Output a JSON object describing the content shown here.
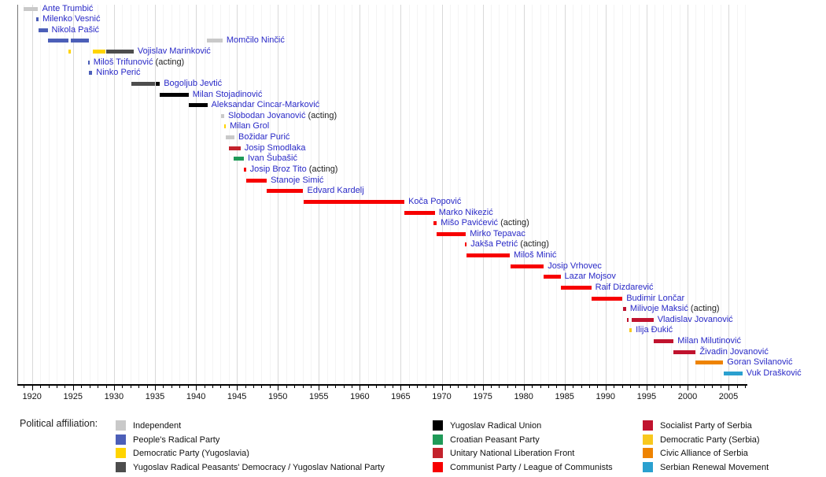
{
  "chart_data": {
    "type": "bar",
    "subtype": "gantt-timeline",
    "description": "Timeline of ministers of foreign affairs of Yugoslavia with terms of office colored by political affiliation",
    "axis": {
      "xmin": 1918.2,
      "xmax": 2007.3,
      "tick_minor_step": 1,
      "tick_label_start": 1920,
      "tick_label_end": 2005,
      "tick_label_step": 5,
      "tick_labels": [
        "1920",
        "1925",
        "1930",
        "1935",
        "1940",
        "1945",
        "1950",
        "1955",
        "1960",
        "1965",
        "1970",
        "1975",
        "1980",
        "1985",
        "1990",
        "1995",
        "2000",
        "2005"
      ],
      "grid": "vertical, yearly minor and 5-year major"
    },
    "acting_suffix": " (acting)",
    "colors": {
      "person_link": "#2929c7",
      "acting_text": "#222222",
      "gridline_minor": "#f4f4f4",
      "gridline_major": "#d9d9d9",
      "axis": "#000000"
    },
    "parties": {
      "independent": {
        "label": "Independent",
        "color": "#c9c9c9"
      },
      "radical": {
        "label": "People's Radical Party",
        "color": "#4c5fb8"
      },
      "democratic_yu": {
        "label": "Democratic Party (Yugoslavia)",
        "color": "#ffd400"
      },
      "ynp": {
        "label": "Yugoslav Radical Peasants' Democracy / Yugoslav National Party",
        "color": "#4d4d4d"
      },
      "jru": {
        "label": "Yugoslav Radical Union",
        "color": "#000000"
      },
      "cpp": {
        "label": "Croatian Peasant Party",
        "color": "#1f9a58"
      },
      "unlf": {
        "label": "Unitary National Liberation Front",
        "color": "#c3222c"
      },
      "communist": {
        "label": "Communist Party / League of Communists",
        "color": "#f70000"
      },
      "sps": {
        "label": "Socialist Party of Serbia",
        "color": "#c0132e"
      },
      "democratic_rs": {
        "label": "Democratic Party (Serbia)",
        "color": "#f8c81e"
      },
      "gsa": {
        "label": "Civic Alliance of Serbia",
        "color": "#ee8300"
      },
      "spo": {
        "label": "Serbian Renewal Movement",
        "color": "#2aa0cf"
      }
    },
    "legend": {
      "title": "Political affiliation:",
      "position": "bottom",
      "columns": [
        [
          "independent",
          "radical",
          "democratic_yu",
          "ynp"
        ],
        [
          "jru",
          "cpp",
          "unlf",
          "communist"
        ],
        [
          "sps",
          "democratic_rs",
          "gsa",
          "spo"
        ]
      ]
    },
    "people": [
      {
        "name": "Ante Trumbić",
        "acting": false,
        "segments": [
          [
            1918.95,
            1920.75,
            "independent"
          ]
        ]
      },
      {
        "name": "Milenko Vesnić",
        "acting": false,
        "segments": [
          [
            1920.5,
            1920.8,
            "radical"
          ]
        ]
      },
      {
        "name": "Nikola Pašić",
        "acting": false,
        "segments": [
          [
            1920.8,
            1921.9,
            "radical"
          ]
        ]
      },
      {
        "name": "Momčilo Ninčić",
        "acting": false,
        "segments": [
          [
            1921.9,
            1924.45,
            "radical"
          ],
          [
            1924.75,
            1926.95,
            "radical"
          ],
          [
            1941.3,
            1943.25,
            "independent"
          ]
        ]
      },
      {
        "name": "Vojislav Marinković",
        "acting": false,
        "segments": [
          [
            1924.45,
            1924.75,
            "democratic_yu"
          ],
          [
            1927.4,
            1929.0,
            "democratic_yu"
          ],
          [
            1929.0,
            1932.4,
            "ynp"
          ]
        ]
      },
      {
        "name": "Miloš Trifunović",
        "acting": true,
        "segments": [
          [
            1926.8,
            1927.0,
            "radical"
          ]
        ]
      },
      {
        "name": "Ninko Perić",
        "acting": false,
        "segments": [
          [
            1926.95,
            1927.35,
            "radical"
          ]
        ]
      },
      {
        "name": "Bogoljub Jevtić",
        "acting": false,
        "segments": [
          [
            1932.1,
            1935.05,
            "ynp"
          ],
          [
            1935.05,
            1935.6,
            "jru"
          ]
        ]
      },
      {
        "name": "Milan Stojadinović",
        "acting": false,
        "segments": [
          [
            1935.6,
            1939.1,
            "jru"
          ]
        ]
      },
      {
        "name": "Aleksandar Cincar-Marković",
        "acting": false,
        "segments": [
          [
            1939.1,
            1941.4,
            "jru"
          ]
        ]
      },
      {
        "name": "Slobodan Jovanović",
        "acting": true,
        "segments": [
          [
            1943.1,
            1943.45,
            "independent"
          ]
        ]
      },
      {
        "name": "Milan Grol",
        "acting": false,
        "segments": [
          [
            1943.4,
            1943.65,
            "democratic_yu"
          ]
        ]
      },
      {
        "name": "Božidar Purić",
        "acting": false,
        "segments": [
          [
            1943.65,
            1944.7,
            "independent"
          ]
        ]
      },
      {
        "name": "Josip Smodlaka",
        "acting": false,
        "segments": [
          [
            1944.0,
            1945.45,
            "unlf"
          ]
        ]
      },
      {
        "name": "Ivan Šubašić",
        "acting": false,
        "segments": [
          [
            1944.6,
            1945.85,
            "cpp"
          ]
        ]
      },
      {
        "name": "Josip Broz Tito",
        "acting": true,
        "segments": [
          [
            1945.85,
            1946.1,
            "communist"
          ]
        ]
      },
      {
        "name": "Stanoje Simić",
        "acting": false,
        "segments": [
          [
            1946.1,
            1948.65,
            "communist"
          ]
        ]
      },
      {
        "name": "Edvard Kardelj",
        "acting": false,
        "segments": [
          [
            1948.65,
            1953.1,
            "communist"
          ]
        ]
      },
      {
        "name": "Koča Popović",
        "acting": false,
        "segments": [
          [
            1953.1,
            1965.45,
            "communist"
          ]
        ]
      },
      {
        "name": "Marko Nikezić",
        "acting": false,
        "segments": [
          [
            1965.45,
            1969.15,
            "communist"
          ]
        ]
      },
      {
        "name": "Mišo Pavićević",
        "acting": true,
        "segments": [
          [
            1969.0,
            1969.4,
            "communist"
          ]
        ]
      },
      {
        "name": "Mirko Tepavac",
        "acting": false,
        "segments": [
          [
            1969.4,
            1972.95,
            "communist"
          ]
        ]
      },
      {
        "name": "Jakša Petrić",
        "acting": true,
        "segments": [
          [
            1972.8,
            1973.05,
            "communist"
          ]
        ]
      },
      {
        "name": "Miloš Minić",
        "acting": false,
        "segments": [
          [
            1973.05,
            1978.3,
            "communist"
          ]
        ]
      },
      {
        "name": "Josip Vrhovec",
        "acting": false,
        "segments": [
          [
            1978.35,
            1982.45,
            "communist"
          ]
        ]
      },
      {
        "name": "Lazar Mojsov",
        "acting": false,
        "segments": [
          [
            1982.45,
            1984.5,
            "communist"
          ]
        ]
      },
      {
        "name": "Raif Dizdarević",
        "acting": false,
        "segments": [
          [
            1984.5,
            1988.25,
            "communist"
          ]
        ]
      },
      {
        "name": "Budimir Lončar",
        "acting": false,
        "segments": [
          [
            1988.25,
            1992.05,
            "communist"
          ]
        ]
      },
      {
        "name": "Milivoje Maksić",
        "acting": true,
        "segments": [
          [
            1992.1,
            1992.5,
            "sps"
          ]
        ]
      },
      {
        "name": "Vladislav Jovanović",
        "acting": false,
        "segments": [
          [
            1992.6,
            1992.85,
            "sps"
          ],
          [
            1993.2,
            1995.85,
            "sps"
          ]
        ]
      },
      {
        "name": "Ilija Đukić",
        "acting": false,
        "segments": [
          [
            1992.85,
            1993.2,
            "democratic_rs"
          ]
        ]
      },
      {
        "name": "Milan Milutinović",
        "acting": false,
        "segments": [
          [
            1995.85,
            1998.3,
            "sps"
          ]
        ]
      },
      {
        "name": "Živadin Jovanović",
        "acting": false,
        "segments": [
          [
            1998.25,
            2001.0,
            "sps"
          ]
        ]
      },
      {
        "name": "Goran Svilanović",
        "acting": false,
        "segments": [
          [
            2000.95,
            2004.35,
            "gsa"
          ]
        ]
      },
      {
        "name": "Vuk Drašković",
        "acting": false,
        "segments": [
          [
            2004.4,
            2006.7,
            "spo"
          ]
        ]
      }
    ]
  }
}
